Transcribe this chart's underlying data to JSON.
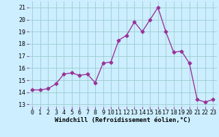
{
  "x": [
    0,
    1,
    2,
    3,
    4,
    5,
    6,
    7,
    8,
    9,
    10,
    11,
    12,
    13,
    14,
    15,
    16,
    17,
    18,
    19,
    20,
    21,
    22,
    23
  ],
  "y": [
    14.2,
    14.2,
    14.3,
    14.7,
    15.5,
    15.6,
    15.4,
    15.5,
    14.8,
    16.4,
    16.5,
    18.3,
    18.7,
    19.8,
    19.0,
    20.0,
    21.0,
    19.0,
    17.3,
    17.4,
    16.4,
    13.4,
    13.2,
    13.4
  ],
  "line_color": "#993399",
  "marker": "D",
  "markersize": 2.5,
  "linewidth": 1.0,
  "xlabel": "Windchill (Refroidissement éolien,°C)",
  "xlabel_fontsize": 6.5,
  "ylabel_ticks": [
    13,
    14,
    15,
    16,
    17,
    18,
    19,
    20,
    21
  ],
  "xlim": [
    -0.5,
    23.5
  ],
  "ylim": [
    12.8,
    21.5
  ],
  "bg_color": "#cceeff",
  "grid_color": "#99cccc",
  "tick_fontsize": 6,
  "xticks": [
    0,
    1,
    2,
    3,
    4,
    5,
    6,
    7,
    8,
    9,
    10,
    11,
    12,
    13,
    14,
    15,
    16,
    17,
    18,
    19,
    20,
    21,
    22,
    23
  ]
}
